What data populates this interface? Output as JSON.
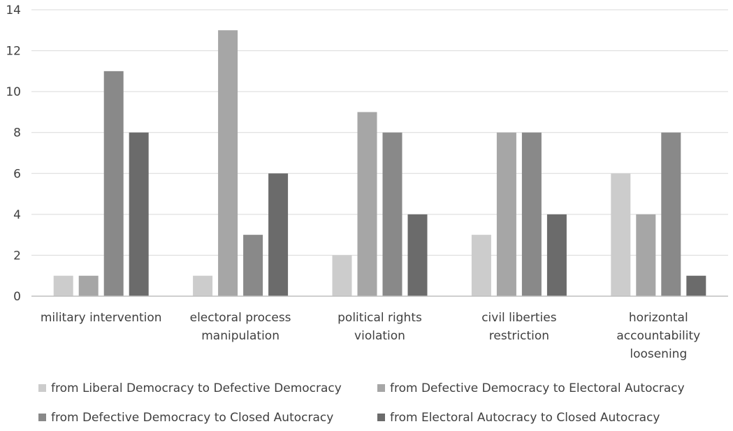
{
  "chart_data": {
    "type": "bar",
    "categories": [
      [
        "military intervention"
      ],
      [
        "electoral process",
        "manipulation"
      ],
      [
        "political rights",
        "violation"
      ],
      [
        "civil liberties",
        "restriction"
      ],
      [
        "horizontal",
        "accountability",
        "loosening"
      ]
    ],
    "series": [
      {
        "name": "from Liberal Democracy to Defective Democracy",
        "color": "#cccccc",
        "values": [
          1,
          1,
          2,
          3,
          6
        ]
      },
      {
        "name": "from Defective Democracy to Electoral Autocracy",
        "color": "#a6a6a6",
        "values": [
          1,
          13,
          9,
          8,
          4
        ]
      },
      {
        "name": "from Defective Democracy to Closed Autocracy",
        "color": "#898989",
        "values": [
          11,
          3,
          8,
          8,
          8
        ]
      },
      {
        "name": "from Electoral Autocracy to Closed Autocracy",
        "color": "#6b6b6b",
        "values": [
          8,
          6,
          4,
          4,
          1
        ]
      }
    ],
    "yticks": [
      "0",
      "2",
      "4",
      "6",
      "8",
      "10",
      "12",
      "14"
    ],
    "ylim": [
      0,
      14
    ],
    "grid": true,
    "legend_position": "bottom"
  }
}
